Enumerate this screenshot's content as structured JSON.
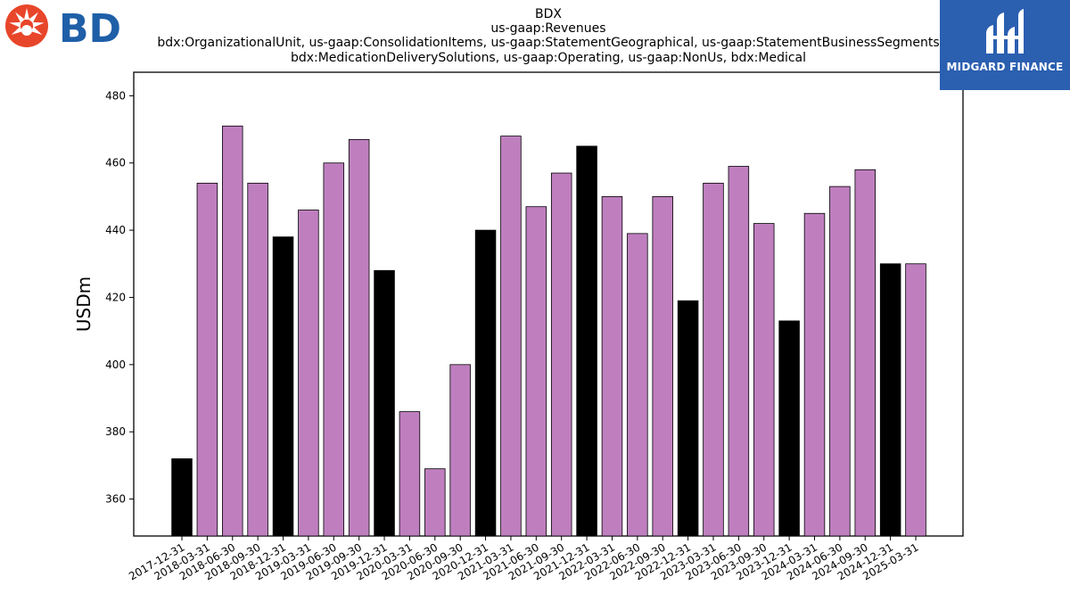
{
  "logos": {
    "left_text": "BD",
    "left_icon": "starburst-logo-icon",
    "right_text": "MIDGARD FINANCE",
    "right_icon": "midgard-logo-icon"
  },
  "colors": {
    "bar_default": "#bf7fbf",
    "bar_highlight": "#000000",
    "bd_red": "#e8462a",
    "bd_blue": "#1f5fa8",
    "midgard_bg": "#2b5fb0"
  },
  "chart_data": {
    "type": "bar",
    "title_lines": [
      "BDX",
      "us-gaap:Revenues",
      "bdx:OrganizationalUnit, us-gaap:ConsolidationItems, us-gaap:StatementGeographical, us-gaap:StatementBusinessSegments",
      "bdx:MedicationDeliverySolutions, us-gaap:Operating, us-gaap:NonUs, bdx:Medical"
    ],
    "ylabel": "USDm",
    "xlabel": "",
    "ylim": [
      349,
      487
    ],
    "yticks": [
      360,
      380,
      400,
      420,
      440,
      460,
      480
    ],
    "categories": [
      "2017-12-31",
      "2018-03-31",
      "2018-06-30",
      "2018-09-30",
      "2018-12-31",
      "2019-03-31",
      "2019-06-30",
      "2019-09-30",
      "2019-12-31",
      "2020-03-31",
      "2020-06-30",
      "2020-09-30",
      "2020-12-31",
      "2021-03-31",
      "2021-06-30",
      "2021-09-30",
      "2021-12-31",
      "2022-03-31",
      "2022-06-30",
      "2022-09-30",
      "2022-12-31",
      "2023-03-31",
      "2023-06-30",
      "2023-09-30",
      "2023-12-31",
      "2024-03-31",
      "2024-06-30",
      "2024-09-30",
      "2024-12-31",
      "2025-03-31"
    ],
    "values": [
      372,
      454,
      471,
      454,
      438,
      446,
      460,
      467,
      428,
      386,
      369,
      400,
      440,
      468,
      447,
      457,
      465,
      450,
      439,
      450,
      419,
      454,
      459,
      442,
      413,
      445,
      453,
      458,
      430,
      430
    ],
    "highlighted": [
      true,
      false,
      false,
      false,
      true,
      false,
      false,
      false,
      true,
      false,
      false,
      false,
      true,
      false,
      false,
      false,
      true,
      false,
      false,
      false,
      true,
      false,
      false,
      false,
      true,
      false,
      false,
      false,
      true,
      false
    ],
    "grid": false,
    "legend": "none"
  }
}
